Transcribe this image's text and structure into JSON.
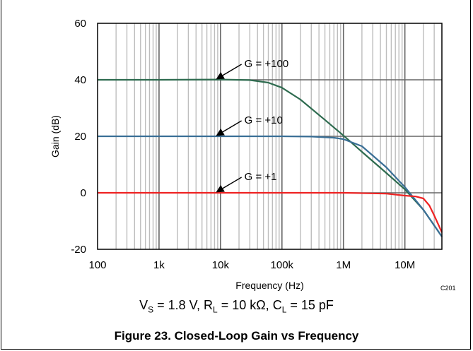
{
  "chart_data": {
    "type": "line",
    "xlabel": "Frequency (Hz)",
    "ylabel": "Gain (dB)",
    "x_scale": "log",
    "xlim": [
      100,
      40000000
    ],
    "ylim": [
      -20,
      60
    ],
    "x_ticks": [
      100,
      1000,
      10000,
      100000,
      1000000,
      10000000
    ],
    "x_tick_labels": [
      "100",
      "1k",
      "10k",
      "100k",
      "1M",
      "10M"
    ],
    "y_ticks": [
      -20,
      0,
      20,
      40,
      60
    ],
    "y_tick_labels": [
      "-20",
      "0",
      "20",
      "40",
      "60"
    ],
    "grid": true,
    "series": [
      {
        "name": "G = +100",
        "color": "#2e6b4f",
        "x": [
          100,
          1000,
          10000,
          30000,
          60000,
          100000,
          200000,
          500000,
          1000000,
          2000000,
          5000000,
          10000000,
          20000000,
          40000000
        ],
        "y": [
          40,
          40,
          40.1,
          39.9,
          39,
          37.2,
          33,
          25.8,
          20.3,
          14.5,
          7,
          1.2,
          -6,
          -15.5
        ]
      },
      {
        "name": "G = +10",
        "color": "#3a6f96",
        "x": [
          100,
          1000,
          10000,
          100000,
          300000,
          700000,
          1000000,
          2000000,
          5000000,
          10000000,
          20000000,
          40000000
        ],
        "y": [
          20,
          20,
          20,
          20,
          19.9,
          19.5,
          19,
          16.5,
          9,
          2,
          -6,
          -15.5
        ]
      },
      {
        "name": "G = +1",
        "color": "#ee2222",
        "x": [
          100,
          1000,
          10000,
          100000,
          1000000,
          5000000,
          10000000,
          15000000,
          20000000,
          25000000,
          30000000,
          40000000
        ],
        "y": [
          0,
          0,
          0,
          0,
          0,
          -0.3,
          -1,
          -1.3,
          -2,
          -4.5,
          -8,
          -14
        ]
      }
    ],
    "annotations": [
      {
        "text": "G = +100",
        "series": 0
      },
      {
        "text": "G = +10",
        "series": 1
      },
      {
        "text": "G = +1",
        "series": 2
      }
    ]
  },
  "conditions": {
    "vs_sym": "V",
    "vs_sub": "S",
    "vs_val": " = 1.8 V, ",
    "rl_sym": "R",
    "rl_sub": "L",
    "rl_val": " = 10 kΩ, ",
    "cl_sym": "C",
    "cl_sub": "L",
    "cl_val": " = 15 pF"
  },
  "figure_code": "C201",
  "caption": "Figure 23. Closed-Loop Gain vs Frequency"
}
